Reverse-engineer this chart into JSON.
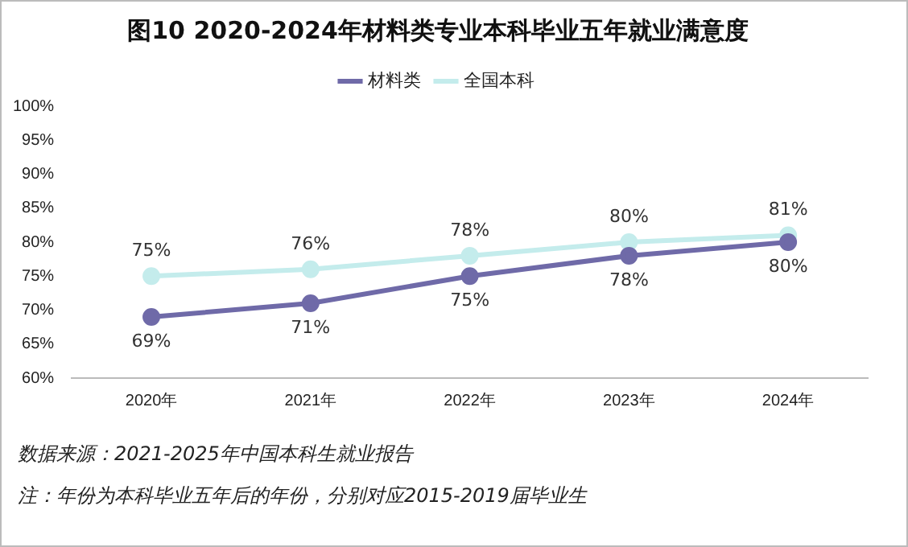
{
  "chart_data": {
    "type": "line",
    "title": "图10 2020-2024年材料类专业本科毕业五年就业满意度",
    "categories": [
      "2020年",
      "2021年",
      "2022年",
      "2023年",
      "2024年"
    ],
    "series": [
      {
        "name": "材料类",
        "color": "#6f6aa8",
        "values": [
          69,
          71,
          75,
          78,
          80
        ]
      },
      {
        "name": "全国本科",
        "color": "#c4ecec",
        "values": [
          75,
          76,
          78,
          80,
          81
        ]
      }
    ],
    "ylim": [
      60,
      100
    ],
    "yticks": [
      {
        "value": 60,
        "label": "60%"
      },
      {
        "value": 65,
        "label": "65%"
      },
      {
        "value": 70,
        "label": "70%"
      },
      {
        "value": 75,
        "label": "75%"
      },
      {
        "value": 80,
        "label": "80%"
      },
      {
        "value": 85,
        "label": "85%"
      },
      {
        "value": 90,
        "label": "90%"
      },
      {
        "value": 95,
        "label": "95%"
      },
      {
        "value": 100,
        "label": "100%"
      }
    ],
    "value_labels": [
      [
        "69%",
        "71%",
        "75%",
        "78%",
        "80%"
      ],
      [
        "75%",
        "76%",
        "78%",
        "80%",
        "81%"
      ]
    ],
    "legend": "top",
    "marker": "circle",
    "line_style": "solid",
    "grid": false,
    "annotations": [
      "数据来源：2021-2025年中国本科生就业报告",
      "注：年份为本科毕业五年后的年份，分别对应2015-2019届毕业生"
    ]
  }
}
